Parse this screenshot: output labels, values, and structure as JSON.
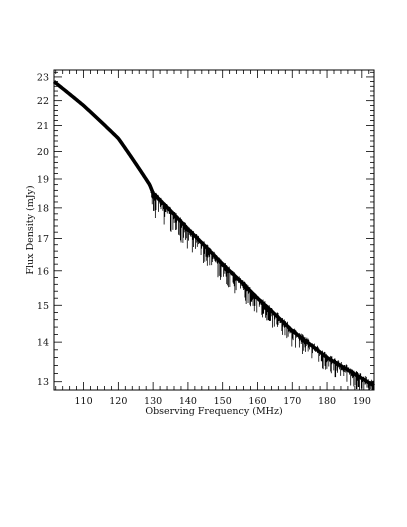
{
  "chart_data": {
    "type": "line",
    "title": "",
    "xlabel": "Observing Frequency (MHz)",
    "ylabel": "Flux Density (mJy)",
    "xlim": [
      101.5,
      193.5
    ],
    "ylim": [
      12.8,
      23.3
    ],
    "yscale": "log",
    "x_ticks": [
      110,
      120,
      130,
      140,
      150,
      160,
      170,
      180,
      190
    ],
    "x_tick_labels": [
      "110",
      "120",
      "130",
      "140",
      "150",
      "160",
      "170",
      "180",
      "190"
    ],
    "y_ticks": [
      13,
      14,
      15,
      16,
      17,
      18,
      19,
      20,
      21,
      22,
      23
    ],
    "y_tick_labels": [
      "13",
      "14",
      "15",
      "16",
      "17",
      "18",
      "19",
      "20",
      "21",
      "22",
      "23"
    ],
    "grid": false,
    "series": [
      {
        "x": [
          101.5,
          110,
          120,
          129,
          130,
          140,
          150,
          160,
          170,
          180,
          193.5
        ],
        "y": [
          22.8,
          21.8,
          20.5,
          18.8,
          18.5,
          17.3,
          16.2,
          15.2,
          14.3,
          13.6,
          12.9
        ],
        "noise_start_x": 129.2,
        "dip_depth": 0.85,
        "color": "#000000"
      }
    ]
  }
}
